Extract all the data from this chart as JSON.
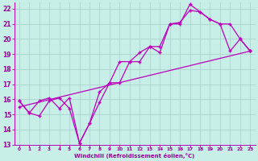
{
  "background_color": "#c8eee8",
  "grid_color": "#b0d8d0",
  "line_color": "#bb00bb",
  "xlabel": "Windchill (Refroidissement éolien,°C)",
  "xlabel_color": "#990099",
  "tick_color": "#990099",
  "xlim": [
    -0.5,
    23.5
  ],
  "ylim": [
    13,
    22.4
  ],
  "yticks": [
    13,
    14,
    15,
    16,
    17,
    18,
    19,
    20,
    21,
    22
  ],
  "xticks": [
    0,
    1,
    2,
    3,
    4,
    5,
    6,
    7,
    8,
    9,
    10,
    11,
    12,
    13,
    14,
    15,
    16,
    17,
    18,
    19,
    20,
    21,
    22,
    23
  ],
  "line1_x": [
    0,
    1,
    2,
    3,
    4,
    5,
    6,
    7,
    8,
    9,
    10,
    11,
    12,
    13,
    14,
    15,
    16,
    17,
    18,
    19,
    20,
    21,
    22,
    23
  ],
  "line1_y": [
    15.9,
    15.1,
    14.9,
    15.9,
    16.1,
    15.4,
    13.1,
    14.4,
    15.8,
    17.1,
    17.1,
    18.5,
    18.5,
    19.5,
    19.5,
    21.0,
    21.0,
    22.3,
    21.8,
    21.3,
    21.0,
    19.2,
    20.0,
    19.2
  ],
  "line2_x": [
    0,
    1,
    2,
    3,
    4,
    5,
    6,
    7,
    8,
    9,
    10,
    11,
    12,
    13,
    14,
    15,
    16,
    17,
    18,
    19,
    20,
    21,
    22,
    23
  ],
  "line2_y": [
    15.9,
    15.1,
    15.9,
    16.1,
    15.4,
    16.1,
    13.1,
    14.4,
    16.5,
    17.1,
    18.5,
    18.5,
    19.1,
    19.5,
    19.1,
    21.0,
    21.1,
    21.9,
    21.8,
    21.3,
    21.0,
    21.0,
    20.0,
    19.2
  ],
  "line3_x": [
    0,
    23
  ],
  "line3_y": [
    15.5,
    19.2
  ]
}
